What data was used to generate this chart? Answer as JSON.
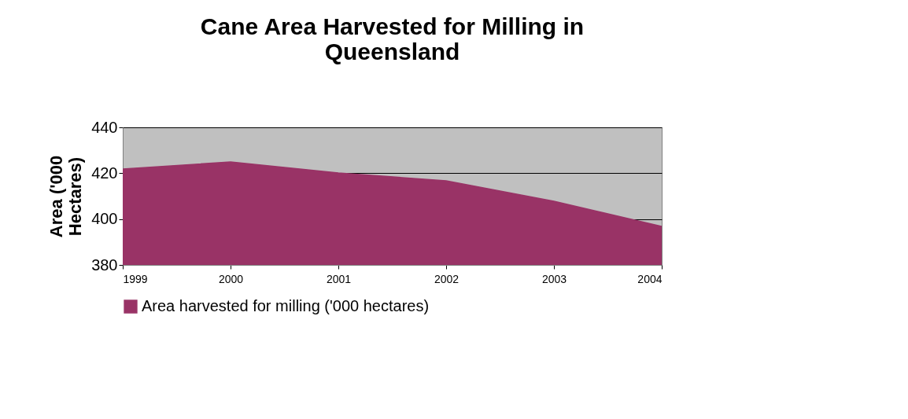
{
  "chart_data": {
    "type": "area",
    "title": "Cane Area Harvested for Milling in Queensland",
    "ylabel": "Area ('000 Hectares)",
    "categories": [
      "1999",
      "2000",
      "2001",
      "2002",
      "2003",
      "2004"
    ],
    "series": [
      {
        "name": "Area harvested for milling ('000 hectares)",
        "color": "#993366",
        "values": [
          421.8,
          424.9,
          420.1,
          416.7,
          407.8,
          396.8
        ]
      }
    ],
    "ylim": [
      380,
      440
    ],
    "yticks": [
      380,
      400,
      420,
      440
    ],
    "grid": "y",
    "legend": "bottom"
  }
}
